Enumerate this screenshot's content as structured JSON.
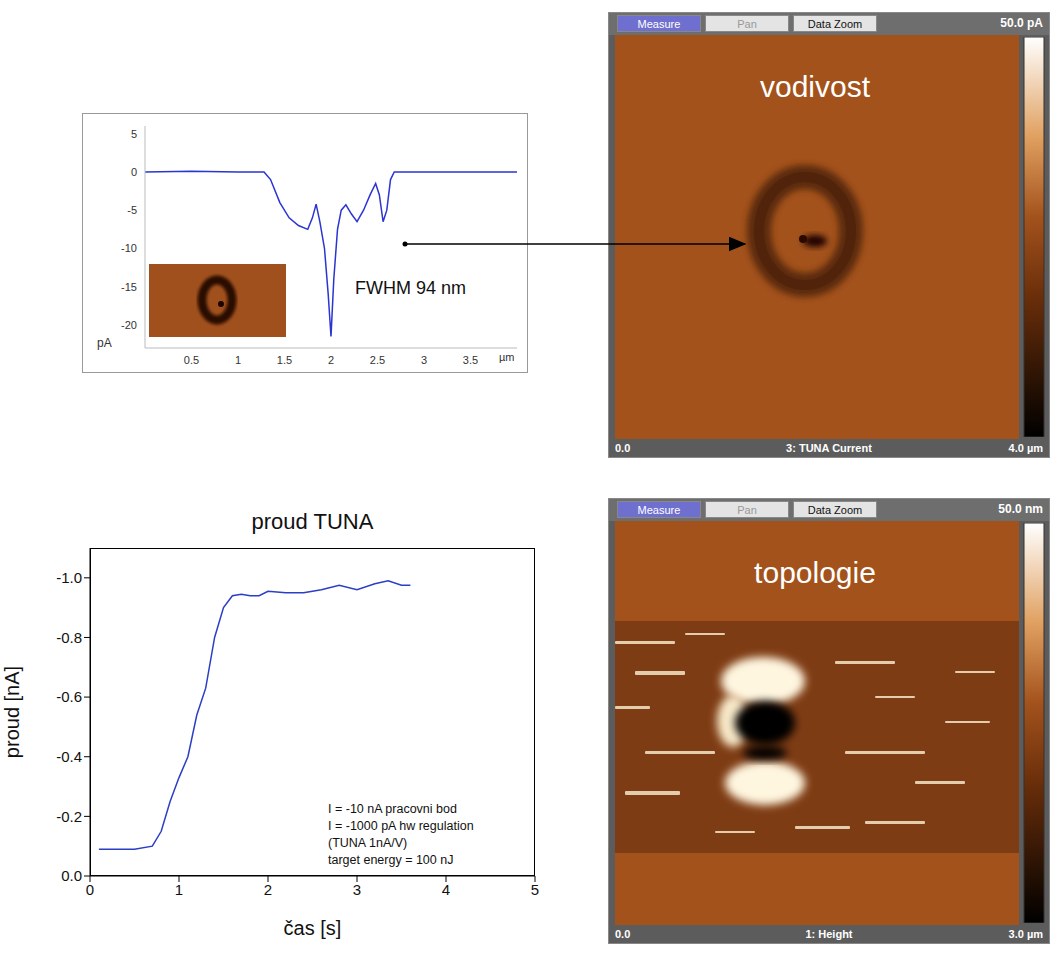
{
  "chart_data": [
    {
      "type": "line",
      "x_label": "µm",
      "y_label": "pA",
      "annotation": "FWHM 94 nm",
      "x": [
        0,
        0.5,
        1.0,
        1.28,
        1.35,
        1.45,
        1.55,
        1.65,
        1.75,
        1.8,
        1.84,
        1.88,
        1.93,
        1.97,
        2.0,
        2.03,
        2.07,
        2.11,
        2.16,
        2.22,
        2.28,
        2.35,
        2.42,
        2.48,
        2.52,
        2.56,
        2.6,
        2.64,
        2.68,
        3.0,
        3.5,
        4.0
      ],
      "values": [
        0,
        0.1,
        0,
        0,
        -1,
        -4,
        -6,
        -7,
        -7.5,
        -6,
        -4.2,
        -6.5,
        -10,
        -16,
        -21.5,
        -14,
        -7.5,
        -5,
        -4.3,
        -5.5,
        -6.5,
        -5,
        -3,
        -1.5,
        -3,
        -6.5,
        -5,
        -1,
        0,
        0,
        0,
        0
      ],
      "color": "#2b35d0",
      "xlim": [
        0,
        4
      ],
      "xticks": [
        0.5,
        1,
        1.5,
        2,
        2.5,
        3,
        3.5
      ],
      "ylim": [
        -23,
        6
      ],
      "yticks": [
        5,
        0,
        -5,
        -10,
        -15,
        -20
      ]
    },
    {
      "type": "line",
      "title": "proud TUNA",
      "x_label": "čas [s]",
      "y_label": "proud [nA]",
      "annotations": [
        "I = -10 nA pracovni bod",
        "I = -1000 pA hw regulation",
        "(TUNA 1nA/V)",
        "target energy = 100 nJ"
      ],
      "x": [
        0.1,
        0.3,
        0.5,
        0.7,
        0.8,
        0.9,
        1.0,
        1.1,
        1.2,
        1.3,
        1.4,
        1.5,
        1.6,
        1.7,
        1.8,
        1.9,
        2.0,
        2.2,
        2.4,
        2.6,
        2.8,
        3.0,
        3.2,
        3.35,
        3.5,
        3.6
      ],
      "values": [
        -0.09,
        -0.09,
        -0.09,
        -0.1,
        -0.15,
        -0.25,
        -0.33,
        -0.4,
        -0.54,
        -0.63,
        -0.8,
        -0.9,
        -0.94,
        -0.945,
        -0.94,
        -0.94,
        -0.955,
        -0.95,
        -0.95,
        -0.96,
        -0.975,
        -0.96,
        -0.98,
        -0.99,
        -0.975,
        -0.975
      ],
      "color": "#2b3fc4",
      "xlim": [
        0,
        5
      ],
      "xticks": [
        0,
        1,
        2,
        3,
        4,
        5
      ],
      "ylim": [
        0,
        -1.1
      ],
      "yticks": [
        {
          "value": 0,
          "label": "0.0"
        },
        -0.2,
        -0.4,
        -0.6,
        -0.8,
        {
          "value": -1,
          "label": "-1.0"
        }
      ]
    }
  ],
  "images": [
    {
      "title": "vodivost",
      "toolbar": [
        "Measure",
        "Pan",
        "Data Zoom"
      ],
      "scale_label": "50.0 pA",
      "x_start": "0.0",
      "channel": "3: TUNA Current",
      "x_end": "4.0 µm"
    },
    {
      "title": "topologie",
      "toolbar": [
        "Measure",
        "Pan",
        "Data Zoom"
      ],
      "scale_label": "50.0 nm",
      "x_start": "0.0",
      "channel": "1: Height",
      "x_end": "3.0 µm"
    }
  ]
}
